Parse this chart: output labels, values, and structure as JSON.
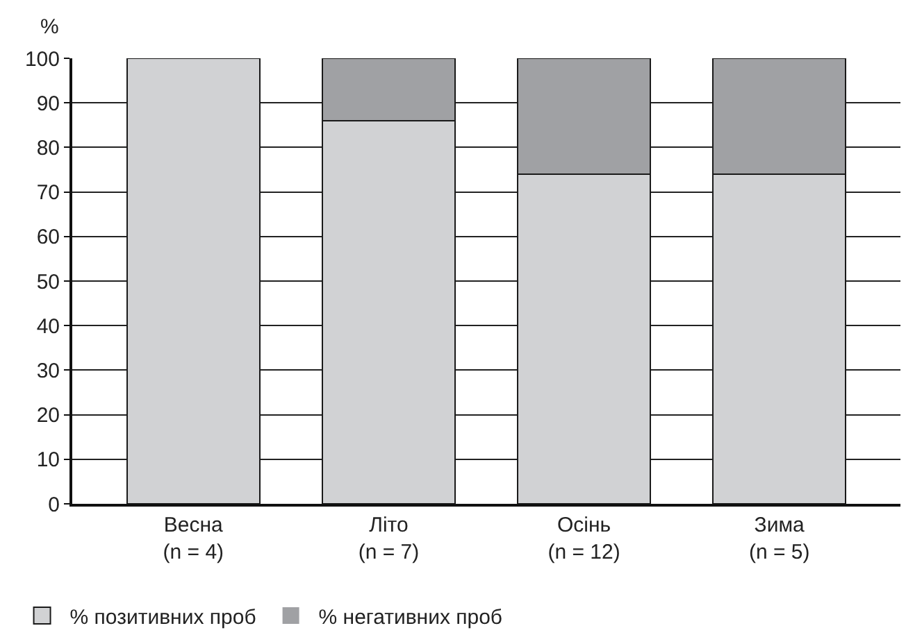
{
  "chart_data": {
    "type": "bar",
    "stacked": true,
    "ylabel": "%",
    "categories": [
      "Весна\n(n = 4)",
      "Літо\n(n = 7)",
      "Осінь\n(n = 12)",
      "Зима\n(n = 5)"
    ],
    "series": [
      {
        "name": "% позитивних проб",
        "color": "#d1d2d4",
        "values": [
          100,
          86,
          74,
          74
        ]
      },
      {
        "name": "% негативних проб",
        "color": "#a0a1a4",
        "values": [
          0,
          14,
          26,
          26
        ]
      }
    ],
    "ylim": [
      0,
      100
    ],
    "yticks": [
      0,
      10,
      20,
      30,
      40,
      50,
      60,
      70,
      80,
      90,
      100
    ],
    "grid": "y",
    "legend": "bottom left"
  }
}
